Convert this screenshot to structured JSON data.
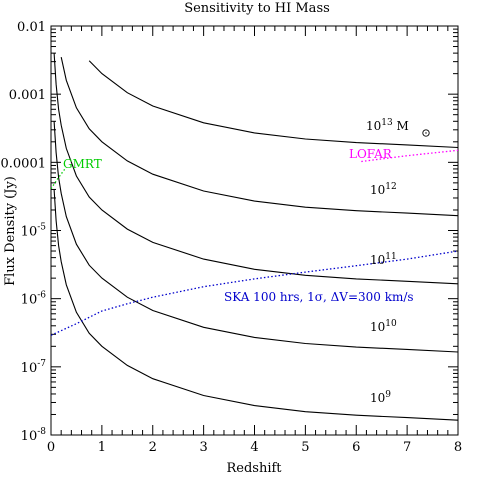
{
  "chart_data": {
    "type": "line",
    "title": "Sensitivity to HI Mass",
    "xlabel": "Redshift",
    "ylabel": "Flux Density (Jy)",
    "log_y": true,
    "xlim": [
      0,
      8
    ],
    "ylim": [
      1e-08,
      0.01
    ],
    "x_ticks": [
      "0",
      "1",
      "2",
      "3",
      "4",
      "5",
      "6",
      "7",
      "8"
    ],
    "y_ticks": [
      {
        "base": "10",
        "exp": "-8"
      },
      {
        "base": "10",
        "exp": "-7"
      },
      {
        "base": "10",
        "exp": "-6"
      },
      {
        "base": "10",
        "exp": "-5"
      },
      {
        "base": "0.0001",
        "exp": ""
      },
      {
        "base": "0.001",
        "exp": ""
      },
      {
        "base": "0.01",
        "exp": ""
      }
    ],
    "curves": [
      {
        "base": "10",
        "exp": "9",
        "suffix": "",
        "color": "#000000",
        "style": "solid",
        "x": [
          0.06,
          0.1,
          0.15,
          0.2,
          0.3,
          0.5,
          0.75,
          1,
          1.5,
          2,
          3,
          4,
          5,
          6,
          7,
          8
        ],
        "y": [
          4e-05,
          1.4e-05,
          6e-06,
          3.5e-06,
          1.6e-06,
          6.3e-07,
          3.1e-07,
          2e-07,
          1.05e-07,
          6.7e-08,
          3.8e-08,
          2.7e-08,
          2.2e-08,
          1.95e-08,
          1.8e-08,
          1.65e-08
        ]
      },
      {
        "base": "10",
        "exp": "10",
        "suffix": "",
        "color": "#000000",
        "style": "solid",
        "x": [
          0.06,
          0.1,
          0.15,
          0.2,
          0.3,
          0.5,
          0.75,
          1,
          1.5,
          2,
          3,
          4,
          5,
          6,
          7,
          8
        ],
        "y": [
          0.0004,
          0.00014,
          6e-05,
          3.5e-05,
          1.6e-05,
          6.3e-06,
          3.1e-06,
          2e-06,
          1.05e-06,
          6.7e-07,
          3.8e-07,
          2.7e-07,
          2.2e-07,
          1.95e-07,
          1.8e-07,
          1.65e-07
        ]
      },
      {
        "base": "10",
        "exp": "11",
        "suffix": "",
        "color": "#000000",
        "style": "solid",
        "x": [
          0.06,
          0.1,
          0.15,
          0.2,
          0.3,
          0.5,
          0.75,
          1,
          1.5,
          2,
          3,
          4,
          5,
          6,
          7,
          8
        ],
        "y": [
          0.004,
          0.0014,
          0.0006,
          0.00035,
          0.00016,
          6.3e-05,
          3.1e-05,
          2e-05,
          1.05e-05,
          6.7e-06,
          3.8e-06,
          2.7e-06,
          2.2e-06,
          1.95e-06,
          1.8e-06,
          1.65e-06
        ]
      },
      {
        "base": "10",
        "exp": "12",
        "suffix": "",
        "color": "#000000",
        "style": "solid",
        "x": [
          0.2,
          0.3,
          0.5,
          0.75,
          1,
          1.5,
          2,
          3,
          4,
          5,
          6,
          7,
          8
        ],
        "y": [
          0.0035,
          0.0016,
          0.00063,
          0.00031,
          0.0002,
          0.000105,
          6.7e-05,
          3.8e-05,
          2.7e-05,
          2.2e-05,
          1.95e-05,
          1.8e-05,
          1.65e-05
        ]
      },
      {
        "base": "10",
        "exp": "13",
        "suffix": " M",
        "color": "#000000",
        "style": "solid",
        "x": [
          0.75,
          1,
          1.5,
          2,
          3,
          4,
          5,
          6,
          7,
          8
        ],
        "y": [
          0.0031,
          0.002,
          0.00105,
          0.00067,
          0.00038,
          0.00027,
          0.00022,
          0.000195,
          0.00018,
          0.000165
        ]
      }
    ],
    "sensitivities": [
      {
        "name": "SKA 100 hrs, 1σ, ΔV=300 km/s",
        "color": "#0000cc",
        "style": "dotted",
        "x": [
          0,
          0.5,
          1,
          1.5,
          2,
          3,
          4,
          5,
          6,
          7,
          8
        ],
        "y": [
          2.9e-07,
          4.3e-07,
          6.6e-07,
          8.4e-07,
          1.05e-06,
          1.5e-06,
          1.95e-06,
          2.45e-06,
          3.05e-06,
          3.8e-06,
          5e-06
        ]
      },
      {
        "name": "LOFAR",
        "color": "#ff00ff",
        "style": "dotted",
        "x": [
          6.1,
          7,
          8
        ],
        "y": [
          0.000103,
          0.000125,
          0.00015
        ]
      },
      {
        "name": "GMRT",
        "color": "#00cc00",
        "style": "dotted",
        "x": [
          0.0,
          0.15,
          0.3
        ],
        "y": [
          4.1e-05,
          6e-05,
          8.5e-05
        ]
      }
    ]
  }
}
